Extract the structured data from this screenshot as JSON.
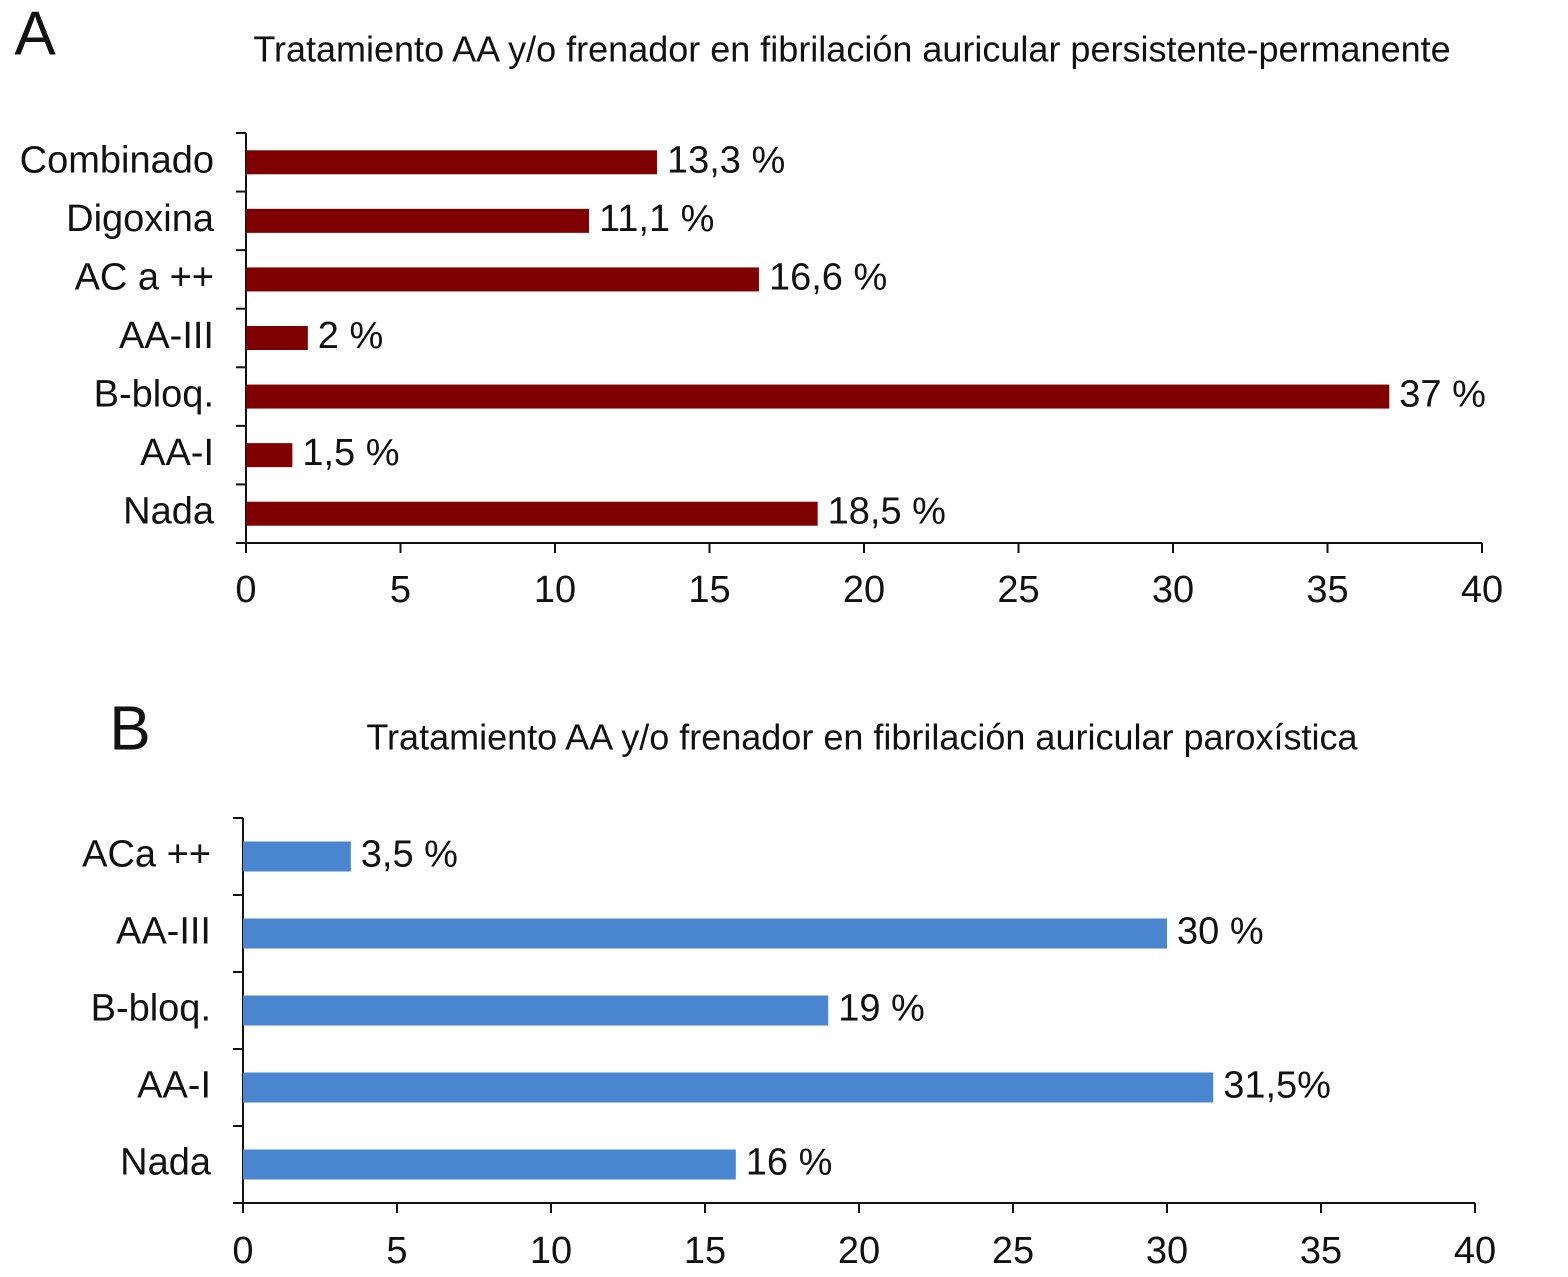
{
  "chart_data": [
    {
      "type": "bar",
      "orientation": "horizontal",
      "panel": "A",
      "title": "Tratamiento AA y/o frenador en fibrilación auricular persistente-permanente",
      "categories": [
        "Combinado",
        "Digoxina",
        "AC a ++",
        "AA-III",
        "B-bloq.",
        "AA-I",
        "Nada"
      ],
      "values": [
        13.3,
        11.1,
        16.6,
        2,
        37,
        1.5,
        18.5
      ],
      "value_labels": [
        "13,3 %",
        "11,1 %",
        "16,6 %",
        "2 %",
        "37 %",
        "1,5 %",
        "18,5 %"
      ],
      "color": "#7f0000",
      "xlim": [
        0,
        40
      ],
      "xticks": [
        0,
        5,
        10,
        15,
        20,
        25,
        30,
        35,
        40
      ],
      "grid": false
    },
    {
      "type": "bar",
      "orientation": "horizontal",
      "panel": "B",
      "title": "Tratamiento AA y/o frenador en fibrilación auricular paroxística",
      "categories": [
        "ACa ++",
        "AA-III",
        "B-bloq.",
        "AA-I",
        "Nada"
      ],
      "values": [
        3.5,
        30,
        19,
        31.5,
        16
      ],
      "value_labels": [
        "3,5 %",
        "30 %",
        "19 %",
        "31,5%",
        "16 %"
      ],
      "color": "#4a86cf",
      "xlim": [
        0,
        40
      ],
      "xticks": [
        0,
        5,
        10,
        15,
        20,
        25,
        30,
        35,
        40
      ],
      "grid": false
    }
  ]
}
